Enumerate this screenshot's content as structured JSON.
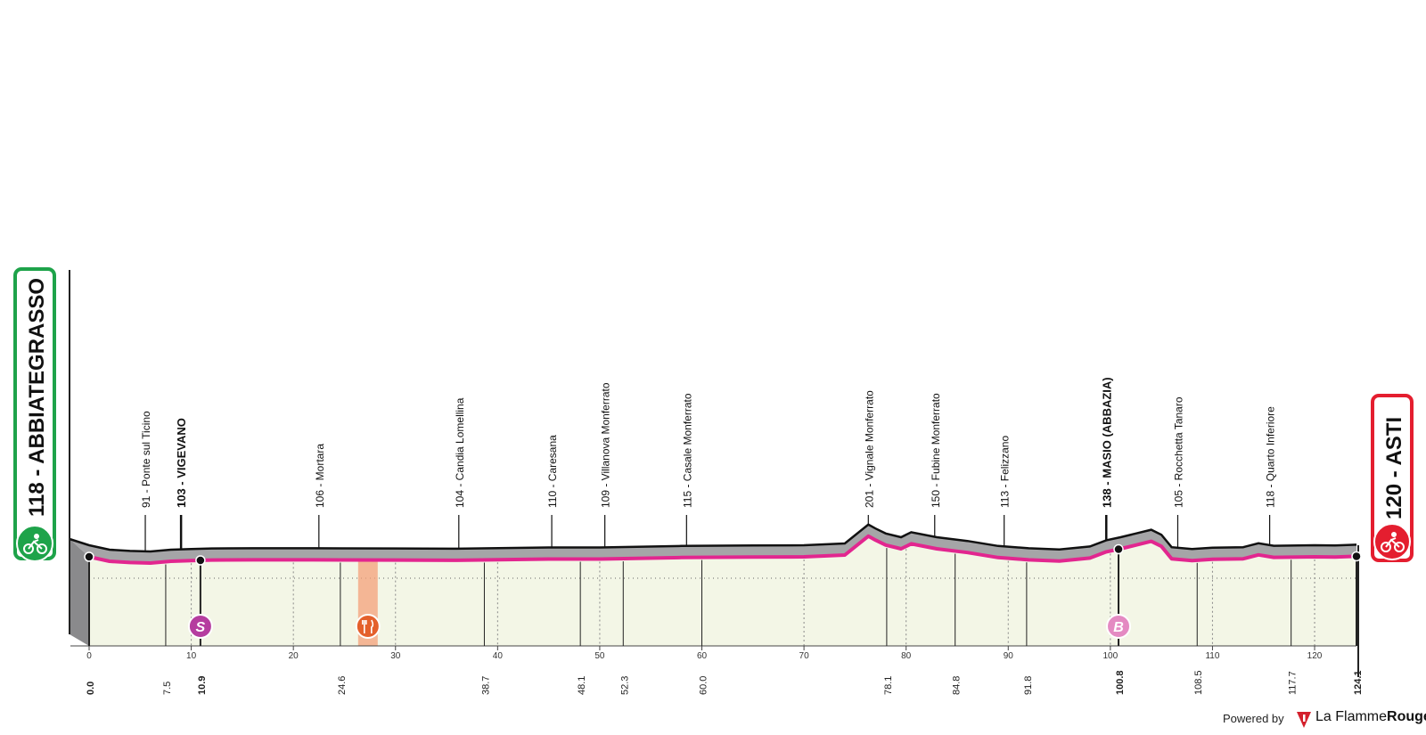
{
  "colors": {
    "route": "#e2268f",
    "terrain": "#a5a5a7",
    "lowland": "#f3f6e6",
    "start": "#1ea34a",
    "finish": "#e41e2f",
    "sprint": "#b53d9f",
    "feed": "#f4a07a",
    "bonus": "#e48ac2"
  },
  "start_label": "118 - ABBIATEGRASSO",
  "finish_label": "120 - ASTI",
  "start_icon": "cyclist-icon",
  "finish_icon": "cyclist-icon",
  "powered_by": "Powered by",
  "brand_part1": "La Flamme",
  "brand_part2": "Rouge",
  "chart_data": {
    "type": "area",
    "title": "",
    "xlabel": "",
    "ylabel": "",
    "xlim": [
      0,
      124.1
    ],
    "x_ticks": [
      0,
      10,
      20,
      30,
      40,
      50,
      60,
      70,
      80,
      90,
      100,
      110,
      120
    ],
    "km_markers": [
      "0.0",
      "7.5",
      "10.9",
      "24.6",
      "38.7",
      "48.1",
      "52.3",
      "60.0",
      "78.1",
      "84.8",
      "91.8",
      "100.8",
      "108.5",
      "117.7",
      "124.1"
    ],
    "km_markers_bold": [
      "0.0",
      "10.9",
      "100.8",
      "124.1"
    ],
    "places": [
      {
        "label": "91 - Ponte sul Ticino",
        "km": 5.5,
        "bold": false
      },
      {
        "label": "103 - VIGEVANO",
        "km": 9.0,
        "bold": true
      },
      {
        "label": "106 - Mortara",
        "km": 22.5,
        "bold": false
      },
      {
        "label": "104 - Candia Lomellina",
        "km": 36.2,
        "bold": false
      },
      {
        "label": "110 - Caresana",
        "km": 45.3,
        "bold": false
      },
      {
        "label": "109 - Villanova Monferrato",
        "km": 50.5,
        "bold": false
      },
      {
        "label": "115 - Casale Monferrato",
        "km": 58.5,
        "bold": false
      },
      {
        "label": "201 - Vignale Monferrato",
        "km": 76.3,
        "bold": false
      },
      {
        "label": "150 - Fubine Monferrato",
        "km": 82.8,
        "bold": false
      },
      {
        "label": "113 - Felizzano",
        "km": 89.6,
        "bold": false
      },
      {
        "label": "138 - MASIO (ABBAZIA)",
        "km": 99.6,
        "bold": true
      },
      {
        "label": "105 - Rocchetta Tanaro",
        "km": 106.6,
        "bold": false
      },
      {
        "label": "118 - Quarto Inferiore",
        "km": 115.6,
        "bold": false
      }
    ],
    "elevation_profile": [
      [
        0,
        118
      ],
      [
        2,
        100
      ],
      [
        4,
        95
      ],
      [
        6,
        93
      ],
      [
        8,
        100
      ],
      [
        10,
        103
      ],
      [
        12,
        105
      ],
      [
        16,
        106
      ],
      [
        22,
        106
      ],
      [
        30,
        105
      ],
      [
        36,
        104
      ],
      [
        45,
        109
      ],
      [
        50,
        109
      ],
      [
        58,
        115
      ],
      [
        65,
        117
      ],
      [
        70,
        118
      ],
      [
        74,
        125
      ],
      [
        76.3,
        201
      ],
      [
        77,
        185
      ],
      [
        78,
        165
      ],
      [
        79.5,
        150
      ],
      [
        80.5,
        170
      ],
      [
        83,
        150
      ],
      [
        86,
        135
      ],
      [
        89,
        115
      ],
      [
        92,
        106
      ],
      [
        95,
        101
      ],
      [
        98,
        113
      ],
      [
        99.6,
        138
      ],
      [
        101,
        150
      ],
      [
        102.5,
        165
      ],
      [
        104,
        180
      ],
      [
        105,
        160
      ],
      [
        106,
        110
      ],
      [
        108,
        103
      ],
      [
        110,
        108
      ],
      [
        113,
        110
      ],
      [
        114.5,
        126
      ],
      [
        116,
        116
      ],
      [
        120,
        118
      ],
      [
        122,
        117
      ],
      [
        124.1,
        120
      ]
    ],
    "special_points": [
      {
        "type": "sprint",
        "symbol": "S",
        "km": 10.9
      },
      {
        "type": "feed",
        "km": 27.3
      },
      {
        "type": "bonus",
        "symbol": "B",
        "km": 100.8
      }
    ]
  }
}
